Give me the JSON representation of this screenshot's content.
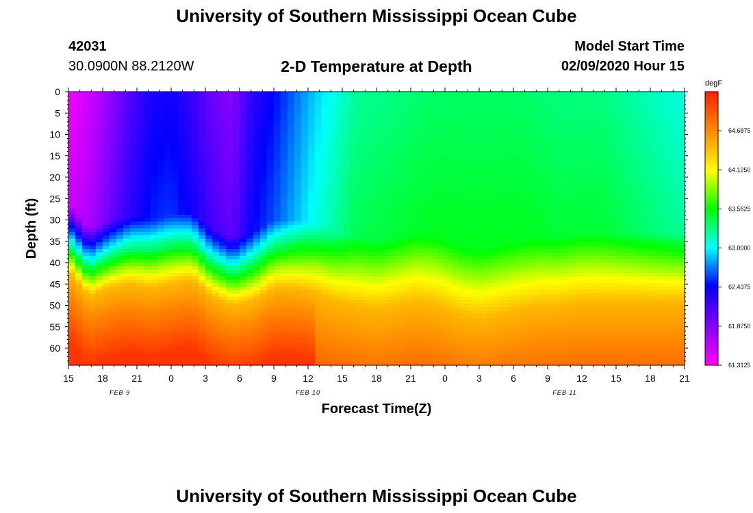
{
  "header": {
    "title": "University of Southern Mississippi Ocean Cube",
    "station_id": "42031",
    "location": "30.0900N 88.2120W",
    "plot_title": "2-D Temperature at Depth",
    "model_start_label": "Model Start Time",
    "model_start_value": "02/09/2020 Hour 15"
  },
  "footer": {
    "title": "University of Southern Mississippi Ocean Cube"
  },
  "chart_data": {
    "type": "heatmap",
    "title": "2-D Temperature at Depth",
    "xlabel": "Forecast Time(Z)",
    "ylabel": "Depth (ft)",
    "x_ticks": [
      "15",
      "18",
      "21",
      "0",
      "3",
      "6",
      "9",
      "12",
      "15",
      "18",
      "21",
      "0",
      "3",
      "6",
      "9",
      "12",
      "15",
      "18",
      "21"
    ],
    "x_date_labels": [
      {
        "label": "FEB 9",
        "tick_index": 1.5
      },
      {
        "label": "FEB 10",
        "tick_index": 7
      },
      {
        "label": "FEB 11",
        "tick_index": 14.5
      }
    ],
    "y_ticks": [
      0,
      5,
      10,
      15,
      20,
      25,
      30,
      35,
      40,
      45,
      50,
      55,
      60
    ],
    "ylim": [
      0,
      64
    ],
    "y_inverted": true,
    "colorbar": {
      "unit": "degF",
      "ticks": [
        "64.6875",
        "64.1250",
        "63.5625",
        "63.0000",
        "62.4375",
        "61.8750",
        "61.3125"
      ],
      "tick_values": [
        64.6875,
        64.125,
        63.5625,
        63.0,
        62.4375,
        61.875,
        61.3125
      ],
      "range": [
        61.3125,
        65.25
      ],
      "colors": [
        "#ff00ff",
        "#8800ff",
        "#0000ff",
        "#00ffff",
        "#00ff00",
        "#ffff00",
        "#ff8800",
        "#ff2000"
      ]
    }
  }
}
